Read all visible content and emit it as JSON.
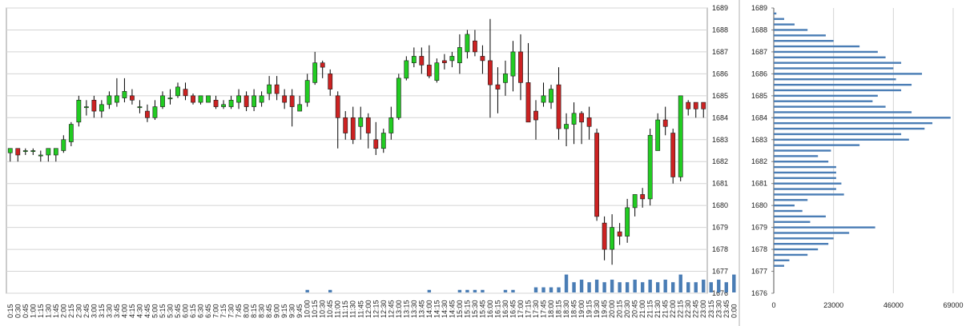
{
  "chart_data": [
    {
      "type": "candlestick",
      "title": "",
      "ylim": [
        1676,
        1689
      ],
      "y_ticks": [
        "1689",
        "1688",
        "1687",
        "1686",
        "1685",
        "1684",
        "1683",
        "1682",
        "1681",
        "1680",
        "1679",
        "1678",
        "1677",
        "1676"
      ],
      "x_ticks": [
        "0:15",
        "0:30",
        "0:45",
        "1:00",
        "1:15",
        "1:30",
        "1:45",
        "2:00",
        "2:15",
        "2:30",
        "2:45",
        "3:00",
        "3:15",
        "3:30",
        "3:45",
        "4:00",
        "4:15",
        "4:30",
        "4:45",
        "5:00",
        "5:15",
        "5:30",
        "5:45",
        "6:00",
        "6:15",
        "6:30",
        "6:45",
        "7:00",
        "7:15",
        "7:30",
        "7:45",
        "8:00",
        "8:15",
        "8:30",
        "8:45",
        "9:00",
        "9:15",
        "9:30",
        "9:45",
        "10:00",
        "10:15",
        "10:30",
        "10:45",
        "11:00",
        "11:15",
        "11:30",
        "11:45",
        "12:00",
        "12:15",
        "12:30",
        "12:45",
        "13:00",
        "13:15",
        "13:30",
        "13:45",
        "14:00",
        "14:15",
        "14:30",
        "14:45",
        "15:00",
        "15:15",
        "15:30",
        "15:45",
        "16:00",
        "16:15",
        "16:30",
        "16:45",
        "17:00",
        "17:15",
        "17:30",
        "17:45",
        "18:00",
        "18:15",
        "18:30",
        "18:45",
        "19:00",
        "19:15",
        "19:30",
        "19:45",
        "20:00",
        "20:15",
        "20:30",
        "20:45",
        "21:00",
        "21:15",
        "21:30",
        "21:45",
        "22:00",
        "22:15",
        "22:30",
        "22:45",
        "23:00",
        "23:15",
        "23:30",
        "23:45",
        "0:00"
      ],
      "up_color": "#22cc22",
      "down_color": "#cc2222",
      "volume_color": "#4a7db5",
      "grid": true,
      "candles": [
        {
          "o": 1682.4,
          "h": 1682.6,
          "l": 1682.0,
          "c": 1682.6
        },
        {
          "o": 1682.6,
          "h": 1682.6,
          "l": 1682.0,
          "c": 1682.3
        },
        {
          "o": 1682.5,
          "h": 1682.6,
          "l": 1682.3,
          "c": 1682.5
        },
        {
          "o": 1682.5,
          "h": 1682.6,
          "l": 1682.3,
          "c": 1682.5
        },
        {
          "o": 1682.3,
          "h": 1682.5,
          "l": 1682.0,
          "c": 1682.3
        },
        {
          "o": 1682.3,
          "h": 1682.6,
          "l": 1682.0,
          "c": 1682.6
        },
        {
          "o": 1682.3,
          "h": 1682.6,
          "l": 1682.0,
          "c": 1682.6
        },
        {
          "o": 1682.5,
          "h": 1683.2,
          "l": 1682.4,
          "c": 1683.0
        },
        {
          "o": 1682.9,
          "h": 1683.8,
          "l": 1682.7,
          "c": 1683.7
        },
        {
          "o": 1683.8,
          "h": 1685.0,
          "l": 1683.6,
          "c": 1684.8
        },
        {
          "o": 1684.5,
          "h": 1684.8,
          "l": 1684.1,
          "c": 1684.5
        },
        {
          "o": 1684.8,
          "h": 1685.0,
          "l": 1684.0,
          "c": 1684.3
        },
        {
          "o": 1684.3,
          "h": 1684.8,
          "l": 1684.0,
          "c": 1684.6
        },
        {
          "o": 1684.6,
          "h": 1685.2,
          "l": 1684.4,
          "c": 1685.0
        },
        {
          "o": 1684.7,
          "h": 1685.8,
          "l": 1684.5,
          "c": 1685.0
        },
        {
          "o": 1684.9,
          "h": 1685.8,
          "l": 1684.7,
          "c": 1685.2
        },
        {
          "o": 1685.0,
          "h": 1685.3,
          "l": 1684.6,
          "c": 1684.8
        },
        {
          "o": 1684.5,
          "h": 1684.8,
          "l": 1684.2,
          "c": 1684.5
        },
        {
          "o": 1684.3,
          "h": 1684.6,
          "l": 1683.8,
          "c": 1684.0
        },
        {
          "o": 1684.0,
          "h": 1684.8,
          "l": 1683.9,
          "c": 1684.5
        },
        {
          "o": 1684.5,
          "h": 1685.2,
          "l": 1684.4,
          "c": 1685.0
        },
        {
          "o": 1684.9,
          "h": 1685.3,
          "l": 1684.6,
          "c": 1684.9
        },
        {
          "o": 1685.0,
          "h": 1685.6,
          "l": 1684.9,
          "c": 1685.4
        },
        {
          "o": 1685.3,
          "h": 1685.6,
          "l": 1684.8,
          "c": 1685.0
        },
        {
          "o": 1685.0,
          "h": 1685.1,
          "l": 1684.6,
          "c": 1684.7
        },
        {
          "o": 1684.7,
          "h": 1685.0,
          "l": 1684.6,
          "c": 1685.0
        },
        {
          "o": 1684.7,
          "h": 1685.0,
          "l": 1684.7,
          "c": 1685.0
        },
        {
          "o": 1684.8,
          "h": 1685.0,
          "l": 1684.4,
          "c": 1684.5
        },
        {
          "o": 1684.5,
          "h": 1684.8,
          "l": 1684.4,
          "c": 1684.6
        },
        {
          "o": 1684.5,
          "h": 1685.0,
          "l": 1684.4,
          "c": 1684.8
        },
        {
          "o": 1684.7,
          "h": 1685.3,
          "l": 1684.4,
          "c": 1685.0
        },
        {
          "o": 1685.0,
          "h": 1685.2,
          "l": 1684.3,
          "c": 1684.5
        },
        {
          "o": 1684.5,
          "h": 1685.3,
          "l": 1684.3,
          "c": 1685.0
        },
        {
          "o": 1684.7,
          "h": 1685.2,
          "l": 1684.5,
          "c": 1685.0
        },
        {
          "o": 1685.1,
          "h": 1685.9,
          "l": 1684.8,
          "c": 1685.5
        },
        {
          "o": 1685.5,
          "h": 1685.9,
          "l": 1684.8,
          "c": 1685.1
        },
        {
          "o": 1685.0,
          "h": 1685.3,
          "l": 1684.4,
          "c": 1684.7
        },
        {
          "o": 1685.0,
          "h": 1685.3,
          "l": 1683.6,
          "c": 1684.5
        },
        {
          "o": 1684.3,
          "h": 1685.0,
          "l": 1684.3,
          "c": 1684.6
        },
        {
          "o": 1684.7,
          "h": 1686.0,
          "l": 1684.5,
          "c": 1685.7
        },
        {
          "o": 1685.6,
          "h": 1687.0,
          "l": 1685.5,
          "c": 1686.5
        },
        {
          "o": 1686.5,
          "h": 1686.6,
          "l": 1685.8,
          "c": 1686.3
        },
        {
          "o": 1686.0,
          "h": 1686.2,
          "l": 1685.0,
          "c": 1685.3
        },
        {
          "o": 1685.0,
          "h": 1685.2,
          "l": 1682.6,
          "c": 1684.0
        },
        {
          "o": 1684.0,
          "h": 1684.3,
          "l": 1683.0,
          "c": 1683.3
        },
        {
          "o": 1684.0,
          "h": 1684.5,
          "l": 1682.8,
          "c": 1683.0
        },
        {
          "o": 1683.6,
          "h": 1684.5,
          "l": 1683.0,
          "c": 1684.0
        },
        {
          "o": 1684.0,
          "h": 1684.2,
          "l": 1682.6,
          "c": 1683.3
        },
        {
          "o": 1683.0,
          "h": 1683.8,
          "l": 1682.3,
          "c": 1682.6
        },
        {
          "o": 1682.6,
          "h": 1683.5,
          "l": 1682.4,
          "c": 1683.3
        },
        {
          "o": 1683.3,
          "h": 1684.5,
          "l": 1683.0,
          "c": 1684.0
        },
        {
          "o": 1684.0,
          "h": 1686.0,
          "l": 1683.9,
          "c": 1685.8
        },
        {
          "o": 1685.8,
          "h": 1686.8,
          "l": 1685.7,
          "c": 1686.6
        },
        {
          "o": 1686.5,
          "h": 1687.2,
          "l": 1686.3,
          "c": 1686.8
        },
        {
          "o": 1686.8,
          "h": 1687.2,
          "l": 1686.0,
          "c": 1686.4
        },
        {
          "o": 1686.4,
          "h": 1687.3,
          "l": 1685.8,
          "c": 1685.9
        },
        {
          "o": 1685.7,
          "h": 1686.7,
          "l": 1685.6,
          "c": 1686.5
        },
        {
          "o": 1686.6,
          "h": 1686.9,
          "l": 1686.2,
          "c": 1686.5
        },
        {
          "o": 1686.6,
          "h": 1687.0,
          "l": 1686.3,
          "c": 1686.8
        },
        {
          "o": 1686.5,
          "h": 1687.8,
          "l": 1686.0,
          "c": 1687.2
        },
        {
          "o": 1687.0,
          "h": 1688.0,
          "l": 1686.7,
          "c": 1687.8
        },
        {
          "o": 1687.5,
          "h": 1688.0,
          "l": 1686.8,
          "c": 1687.0
        },
        {
          "o": 1686.8,
          "h": 1687.3,
          "l": 1686.0,
          "c": 1686.6
        },
        {
          "o": 1686.6,
          "h": 1688.5,
          "l": 1684.0,
          "c": 1685.5
        },
        {
          "o": 1685.5,
          "h": 1686.3,
          "l": 1684.2,
          "c": 1685.3
        },
        {
          "o": 1685.6,
          "h": 1686.6,
          "l": 1685.0,
          "c": 1686.0
        },
        {
          "o": 1685.9,
          "h": 1687.5,
          "l": 1685.2,
          "c": 1687.0
        },
        {
          "o": 1687.0,
          "h": 1687.8,
          "l": 1684.8,
          "c": 1685.6
        },
        {
          "o": 1685.6,
          "h": 1687.4,
          "l": 1683.8,
          "c": 1683.8
        },
        {
          "o": 1684.3,
          "h": 1684.8,
          "l": 1683.0,
          "c": 1683.9
        },
        {
          "o": 1684.7,
          "h": 1685.6,
          "l": 1684.5,
          "c": 1685.0
        },
        {
          "o": 1684.7,
          "h": 1685.5,
          "l": 1684.4,
          "c": 1685.3
        },
        {
          "o": 1685.5,
          "h": 1686.3,
          "l": 1683.0,
          "c": 1683.5
        },
        {
          "o": 1683.5,
          "h": 1684.2,
          "l": 1682.7,
          "c": 1683.7
        },
        {
          "o": 1683.7,
          "h": 1684.7,
          "l": 1682.8,
          "c": 1684.2
        },
        {
          "o": 1684.2,
          "h": 1684.3,
          "l": 1682.8,
          "c": 1683.8
        },
        {
          "o": 1684.0,
          "h": 1684.5,
          "l": 1683.0,
          "c": 1683.6
        },
        {
          "o": 1683.3,
          "h": 1683.5,
          "l": 1679.3,
          "c": 1679.5
        },
        {
          "o": 1679.2,
          "h": 1679.5,
          "l": 1677.5,
          "c": 1678.0
        },
        {
          "o": 1678.0,
          "h": 1679.6,
          "l": 1677.3,
          "c": 1679.0
        },
        {
          "o": 1678.8,
          "h": 1679.2,
          "l": 1678.2,
          "c": 1678.6
        },
        {
          "o": 1678.6,
          "h": 1680.3,
          "l": 1678.3,
          "c": 1679.9
        },
        {
          "o": 1679.9,
          "h": 1680.5,
          "l": 1679.5,
          "c": 1680.5
        },
        {
          "o": 1680.5,
          "h": 1680.8,
          "l": 1679.9,
          "c": 1680.3
        },
        {
          "o": 1680.3,
          "h": 1683.5,
          "l": 1680.0,
          "c": 1683.2
        },
        {
          "o": 1682.5,
          "h": 1684.2,
          "l": 1682.5,
          "c": 1683.9
        },
        {
          "o": 1683.9,
          "h": 1684.5,
          "l": 1683.2,
          "c": 1683.6
        },
        {
          "o": 1683.3,
          "h": 1683.5,
          "l": 1681.0,
          "c": 1681.3
        },
        {
          "o": 1681.3,
          "h": 1685.0,
          "l": 1681.1,
          "c": 1685.0
        },
        {
          "o": 1684.7,
          "h": 1684.8,
          "l": 1684.1,
          "c": 1684.4
        },
        {
          "o": 1684.7,
          "h": 1684.7,
          "l": 1684.0,
          "c": 1684.4
        },
        {
          "o": 1684.7,
          "h": 1684.7,
          "l": 1684.0,
          "c": 1684.4
        }
      ],
      "volume": [
        0,
        0,
        0,
        0,
        0,
        0,
        0,
        0,
        0,
        0,
        0,
        0,
        0,
        0,
        0,
        0,
        0,
        0,
        0,
        0,
        0,
        0,
        0,
        0,
        0,
        0,
        0,
        0,
        0,
        0,
        0,
        0,
        0,
        0,
        0,
        0,
        0,
        0,
        0,
        1,
        0,
        0,
        1,
        0,
        0,
        0,
        0,
        0,
        0,
        0,
        0,
        0,
        0,
        0,
        0,
        1,
        0,
        0,
        0,
        1,
        1,
        1,
        1,
        0,
        0,
        1,
        1,
        0,
        0,
        2,
        2,
        2,
        2,
        7,
        4,
        5,
        4,
        5,
        4,
        5,
        4,
        4,
        5,
        4,
        5,
        4,
        5,
        4,
        7,
        4,
        4,
        5,
        4,
        5,
        4,
        7,
        5
      ]
    },
    {
      "type": "bar",
      "orientation": "horizontal",
      "title": "",
      "xlim": [
        0,
        69000
      ],
      "x_ticks": [
        "0",
        "23000",
        "46000",
        "69000"
      ],
      "ylim": [
        1676,
        1689
      ],
      "y_ticks": [
        "1689",
        "1688",
        "1687",
        "1686",
        "1685",
        "1684",
        "1683",
        "1682",
        "1681",
        "1680",
        "1679",
        "1678",
        "1677",
        "1676"
      ],
      "bar_color": "#4a7db5",
      "grid": true,
      "price_levels": [
        1677.25,
        1677.5,
        1677.75,
        1678.0,
        1678.25,
        1678.5,
        1678.75,
        1679.0,
        1679.25,
        1679.5,
        1679.75,
        1680.0,
        1680.25,
        1680.5,
        1680.75,
        1681.0,
        1681.25,
        1681.5,
        1681.75,
        1682.0,
        1682.25,
        1682.5,
        1682.75,
        1683.0,
        1683.25,
        1683.5,
        1683.75,
        1684.0,
        1684.25,
        1684.5,
        1684.75,
        1685.0,
        1685.25,
        1685.5,
        1685.75,
        1686.0,
        1686.25,
        1686.5,
        1686.75,
        1687.0,
        1687.25,
        1687.5,
        1687.75,
        1688.0,
        1688.25,
        1688.5,
        1688.75
      ],
      "values": [
        4000,
        6000,
        13000,
        17000,
        21000,
        23000,
        29000,
        39000,
        14000,
        20000,
        11000,
        8000,
        13000,
        27000,
        24000,
        26000,
        24000,
        24000,
        24000,
        21000,
        17000,
        22000,
        33000,
        52000,
        49000,
        58000,
        61000,
        68000,
        53000,
        43000,
        38000,
        40000,
        49000,
        53000,
        47000,
        57000,
        46000,
        49000,
        43000,
        40000,
        33000,
        23000,
        20000,
        13000,
        8000,
        4000,
        1000
      ]
    }
  ]
}
